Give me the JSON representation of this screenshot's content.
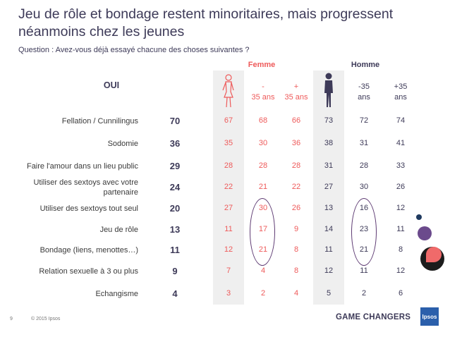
{
  "title": "Jeu de rôle et bondage restent minoritaires, mais progressent néanmoins chez les jeunes",
  "question": "Question : Avez-vous déjà essayé chacune des choses suivantes ?",
  "footer": {
    "page": "9",
    "copyright": "© 2015 Ipsos",
    "tagline": "GAME CHANGERS",
    "logo": "Ipsos"
  },
  "colors": {
    "female": "#ee5a5a",
    "male": "#3d3a58",
    "highlight": "#5e3b73"
  },
  "chart_data": {
    "type": "table",
    "title": "Jeu de rôle et bondage restent minoritaires, mais progressent néanmoins chez les jeunes",
    "total_label": "OUI",
    "groups": [
      {
        "name": "Femme",
        "icon": "female-figure-icon",
        "subcolumns": [
          {
            "line1": "-",
            "line2": "35 ans"
          },
          {
            "line1": "+",
            "line2": "35 ans"
          }
        ]
      },
      {
        "name": "Homme",
        "icon": "male-figure-icon",
        "subcolumns": [
          {
            "line1": "-35",
            "line2": "ans"
          },
          {
            "line1": "+35",
            "line2": "ans"
          }
        ]
      }
    ],
    "columns": [
      "OUI",
      "Femme",
      "Femme -35 ans",
      "Femme +35 ans",
      "Homme",
      "Homme -35 ans",
      "Homme +35 ans"
    ],
    "rows": [
      {
        "label": "Fellation / Cunnilingus",
        "total": "70",
        "values": [
          "67",
          "68",
          "66",
          "73",
          "72",
          "74"
        ]
      },
      {
        "label": "Sodomie",
        "total": "36",
        "values": [
          "35",
          "30",
          "36",
          "38",
          "31",
          "41"
        ]
      },
      {
        "label": "Faire l'amour dans un lieu public",
        "total": "29",
        "values": [
          "28",
          "28",
          "28",
          "31",
          "28",
          "33"
        ]
      },
      {
        "label": "Utiliser des sextoys avec votre partenaire",
        "total": "24",
        "values": [
          "22",
          "21",
          "22",
          "27",
          "30",
          "26"
        ]
      },
      {
        "label": "Utiliser des sextoys tout seul",
        "total": "20",
        "values": [
          "27",
          "30",
          "26",
          "13",
          "16",
          "12"
        ]
      },
      {
        "label": "Jeu de rôle",
        "total": "13",
        "values": [
          "11",
          "17",
          "9",
          "14",
          "23",
          "11"
        ]
      },
      {
        "label": "Bondage (liens, menottes…)",
        "total": "11",
        "values": [
          "12",
          "21",
          "8",
          "11",
          "21",
          "8"
        ]
      },
      {
        "label": "Relation sexuelle à 3 ou plus",
        "total": "9",
        "values": [
          "7",
          "4",
          "8",
          "12",
          "11",
          "12"
        ]
      },
      {
        "label": "Echangisme",
        "total": "4",
        "values": [
          "3",
          "2",
          "4",
          "5",
          "2",
          "6"
        ]
      }
    ],
    "highlighted_columns": [
      "Femme -35 ans",
      "Homme -35 ans"
    ],
    "highlighted_rows": [
      "Utiliser des sextoys tout seul",
      "Jeu de rôle",
      "Bondage (liens, menottes…)"
    ]
  }
}
